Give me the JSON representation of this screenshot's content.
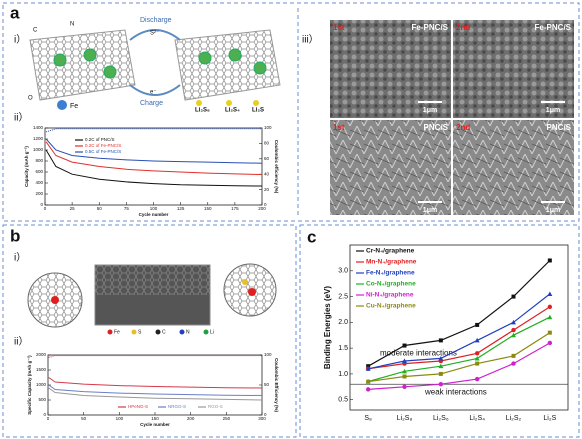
{
  "panel_a": {
    "label": "a",
    "sub_i": "i）",
    "sub_ii": "ii）",
    "sub_iii": "iii）",
    "discharge": "Discharge",
    "charge": "Charge",
    "ion": "S²⁻",
    "electron": "e⁻",
    "atoms": [
      "C",
      "N",
      "O"
    ],
    "fe": "Fe",
    "products": [
      "Li₂S₈",
      "Li₂S₄",
      "Li₂S"
    ],
    "sem": [
      {
        "order": "1st",
        "sample": "Fe-PNC/S",
        "scale": "1μm"
      },
      {
        "order": "2nd",
        "sample": "Fe-PNC/S",
        "scale": "1μm"
      },
      {
        "order": "1st",
        "sample": "PNC/S",
        "scale": "1μm"
      },
      {
        "order": "2nd",
        "sample": "PNC/S",
        "scale": "1μm"
      }
    ]
  },
  "panel_b": {
    "label": "b",
    "sub_i": "i）",
    "sub_ii": "ii）",
    "atom_legend": [
      "Fe",
      "S",
      "C",
      "N",
      "Li"
    ]
  },
  "panel_c": {
    "label": "c"
  },
  "chart_data": [
    {
      "type": "line",
      "x_label": "Cycle number",
      "y_label": "Capacity (mAh g⁻¹)",
      "y2_label": "Coulombic efficiency (%)",
      "x": [
        1,
        10,
        25,
        50,
        75,
        100,
        125,
        150,
        175,
        200
      ],
      "xlim": [
        0,
        200
      ],
      "xticks": [
        0,
        25,
        50,
        75,
        100,
        125,
        150,
        175,
        200
      ],
      "ylim": [
        0,
        1400
      ],
      "yticks": [
        0,
        200,
        400,
        600,
        800,
        1000,
        1200,
        1400
      ],
      "y2lim": [
        0,
        100
      ],
      "y2ticks": [
        0,
        20,
        40,
        60,
        80,
        100
      ],
      "series": [
        {
          "name": "0.2C of PNC/S",
          "color": "#111111",
          "values": [
            1000,
            700,
            560,
            470,
            420,
            390,
            370,
            360,
            350,
            345
          ]
        },
        {
          "name": "0.2C of Fe-PNC/S",
          "color": "#e0302a",
          "values": [
            1150,
            900,
            780,
            700,
            650,
            620,
            600,
            580,
            565,
            555
          ]
        },
        {
          "name": "0.5C of Fe-PNC/S",
          "color": "#2a4fb5",
          "values": [
            1200,
            1000,
            900,
            850,
            820,
            800,
            790,
            780,
            770,
            760
          ]
        },
        {
          "color": "#2a4fb5",
          "axis": "y2",
          "values": [
            95,
            99,
            99,
            99,
            99,
            99,
            99,
            99,
            99,
            99
          ]
        }
      ]
    },
    {
      "type": "line",
      "x_label": "Cycle number",
      "y_label": "Specific Capacity (mAh g⁻¹)",
      "y2_label": "Coulombic Efficiency (%)",
      "x": [
        1,
        10,
        50,
        100,
        150,
        200,
        250,
        300
      ],
      "xlim": [
        0,
        300
      ],
      "xticks": [
        0,
        50,
        100,
        150,
        200,
        250,
        300
      ],
      "ylim": [
        0,
        2000
      ],
      "yticks": [
        0,
        500,
        1000,
        1500,
        2000
      ],
      "y2lim": [
        0,
        100
      ],
      "y2ticks": [
        0,
        50,
        100
      ],
      "series": [
        {
          "name": "HPeNG-S",
          "color": "#d63a4a",
          "values": [
            1250,
            1100,
            1030,
            980,
            950,
            930,
            910,
            900
          ]
        },
        {
          "name": "NRGO-S",
          "color": "#6a7fc8",
          "values": [
            1000,
            850,
            780,
            730,
            700,
            680,
            660,
            650
          ]
        },
        {
          "name": "RGO-S",
          "color": "#999999",
          "values": [
            900,
            750,
            650,
            600,
            560,
            540,
            520,
            500
          ]
        },
        {
          "color": "#d63a4a",
          "axis": "y2",
          "values": [
            96,
            99,
            99,
            99,
            99,
            99,
            99,
            99
          ]
        }
      ]
    },
    {
      "type": "line",
      "y_label": "Binding Energies (eV)",
      "categories": [
        "S₈",
        "Li₂S₈",
        "Li₂S₆",
        "Li₂S₄",
        "Li₂S₂",
        "Li₂S"
      ],
      "ylim": [
        0.3,
        3.5
      ],
      "yticks": [
        {
          "value": 0.5,
          "label": "0.5"
        },
        {
          "value": 1,
          "label": "1.0"
        },
        {
          "value": 1.5,
          "label": "1.5"
        },
        {
          "value": 2,
          "label": "2.0"
        },
        {
          "value": 2.5,
          "label": "2.5"
        },
        {
          "value": 3,
          "label": "3.0"
        }
      ],
      "reference_line": 0.8,
      "annotations": [
        "moderate interactions",
        "weak interactions"
      ],
      "series": [
        {
          "name": "Cr-N₄/graphene",
          "color": "#111111",
          "values": [
            1.15,
            1.55,
            1.65,
            1.95,
            2.5,
            3.2
          ]
        },
        {
          "name": "Mn-N₄/graphene",
          "color": "#e02020",
          "values": [
            1.1,
            1.2,
            1.25,
            1.4,
            1.85,
            2.3
          ]
        },
        {
          "name": "Fe-N₄/graphene",
          "color": "#2040c0",
          "values": [
            1.1,
            1.25,
            1.3,
            1.65,
            2.0,
            2.55
          ]
        },
        {
          "name": "Co-N₄/graphene",
          "color": "#20b020",
          "values": [
            0.85,
            1.05,
            1.15,
            1.3,
            1.75,
            2.1
          ]
        },
        {
          "name": "Ni-N₄/graphene",
          "color": "#d020d0",
          "values": [
            0.7,
            0.75,
            0.8,
            0.9,
            1.2,
            1.6
          ]
        },
        {
          "name": "Cu-N₄/graphene",
          "color": "#8a8a10",
          "values": [
            0.85,
            0.95,
            1.0,
            1.2,
            1.35,
            1.8
          ]
        }
      ]
    }
  ]
}
